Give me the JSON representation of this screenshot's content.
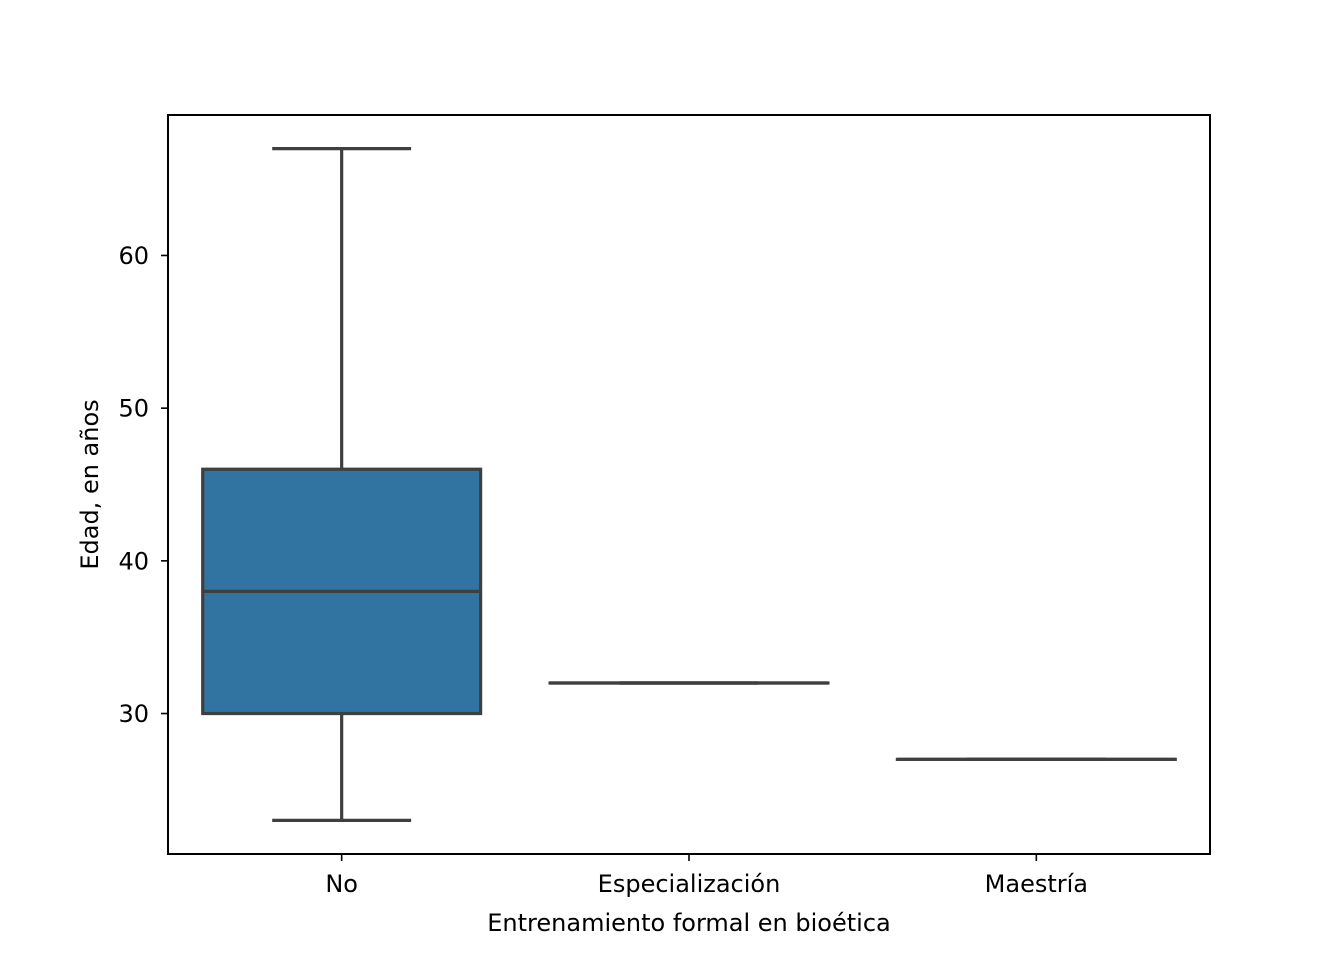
{
  "chart_data": {
    "type": "boxplot",
    "title": "",
    "xlabel": "Entrenamiento formal en bioética",
    "ylabel": "Edad, en años",
    "categories": [
      "No",
      "Especialización",
      "Maestría"
    ],
    "boxes": [
      {
        "category": "No",
        "min": 23,
        "q1": 30,
        "median": 38,
        "q3": 46,
        "max": 67,
        "color": "#3274a1"
      },
      {
        "category": "Especialización",
        "min": 32,
        "q1": 32,
        "median": 32,
        "q3": 32,
        "max": 32,
        "color": "#e1812c"
      },
      {
        "category": "Maestría",
        "min": 27,
        "q1": 27,
        "median": 27,
        "q3": 27,
        "max": 27,
        "color": "#3a923a"
      }
    ],
    "ylim": [
      20.8,
      69.2
    ],
    "yticks": [
      30,
      40,
      50,
      60
    ],
    "grid": false,
    "legend": "none",
    "line_color": "#3f3f3f"
  }
}
